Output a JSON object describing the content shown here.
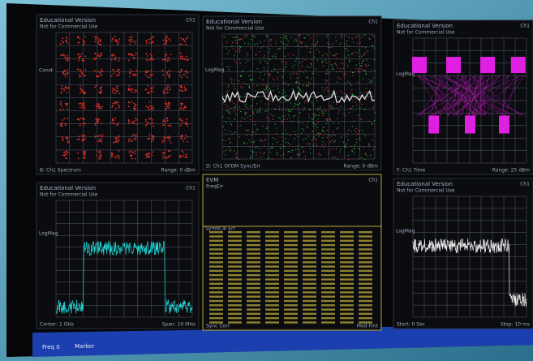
{
  "panels": [
    {
      "title": "Educational Version",
      "note": "Not for Commercial Use",
      "axis": "Const",
      "footer": "B: Ch1 Spectrum",
      "range": "Range: 0 dBm",
      "tag": "Ch1"
    },
    {
      "title": "Educational Version",
      "note": "Not for Commercial Use",
      "axis": "LogMag",
      "footer": "D: Ch1 OFDM Sync/Err",
      "range": "Range: 0 dBm",
      "tag": "Ch1"
    },
    {
      "title": "Educational Version",
      "note": "Not for Commercial Use",
      "axis": "LogMag",
      "footer": "F: Ch1 Time",
      "range": "Range: 25 dBm",
      "tag": "Ch1"
    },
    {
      "title": "Educational Version",
      "note": "Not for Commercial Use",
      "axis": "LogMag",
      "footer": "Center: 1 GHz",
      "range": "Span: 10 MHz",
      "tag": "Ch1"
    },
    {
      "title": "EVM",
      "note": "FreqErr",
      "axis": "SymbClk Err",
      "footer": "Sync Corr",
      "range": "Mod Fmt",
      "tag": "Ch1"
    },
    {
      "title": "Educational Version",
      "note": "Not for Commercial Use",
      "axis": "LogMag",
      "footer": "Start: 0 Sec",
      "range": "Stop: 10 ms",
      "tag": "Ch1"
    }
  ],
  "status_bar": {
    "left": "Freq 0",
    "middle": "Marker"
  }
}
